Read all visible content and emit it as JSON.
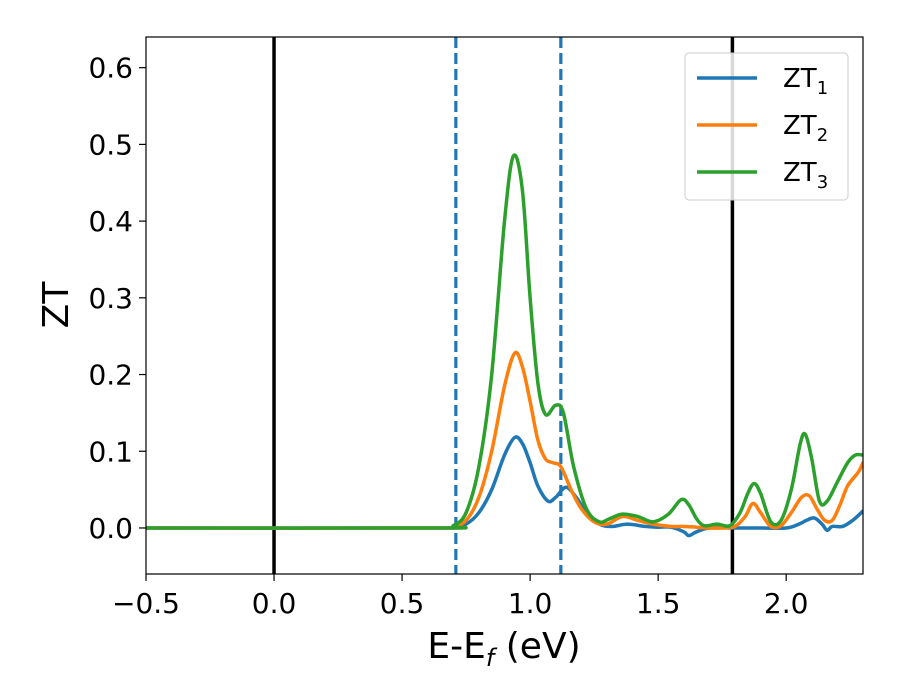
{
  "chart_data": {
    "type": "line",
    "xlabel": {
      "main": "E-E",
      "sub": "f",
      "suffix": " (eV)"
    },
    "ylabel": "ZT",
    "xlim": [
      -0.5,
      2.3
    ],
    "ylim": [
      -0.06,
      0.64
    ],
    "xticks": [
      -0.5,
      0.0,
      0.5,
      1.0,
      1.5,
      2.0
    ],
    "xtick_labels": [
      "−0.5",
      "0.0",
      "0.5",
      "1.0",
      "1.5",
      "2.0"
    ],
    "yticks": [
      0.0,
      0.1,
      0.2,
      0.3,
      0.4,
      0.5,
      0.6
    ],
    "ytick_labels": [
      "0.0",
      "0.1",
      "0.2",
      "0.3",
      "0.4",
      "0.5",
      "0.6"
    ],
    "grid": false,
    "legend_position": "top-right",
    "vlines": [
      {
        "x": 0.0,
        "style": "solid",
        "color": "#000000"
      },
      {
        "x": 1.79,
        "style": "solid",
        "color": "#000000"
      },
      {
        "x": 0.71,
        "style": "dashed",
        "color": "#1f77b4"
      },
      {
        "x": 1.12,
        "style": "dashed",
        "color": "#1f77b4"
      }
    ],
    "series": [
      {
        "name": "ZT",
        "sub": "1",
        "color": "#1f77b4",
        "points": [
          [
            -0.5,
            0
          ],
          [
            0.65,
            0
          ],
          [
            0.7,
            0.001
          ],
          [
            0.75,
            0.005
          ],
          [
            0.8,
            0.02
          ],
          [
            0.85,
            0.05
          ],
          [
            0.9,
            0.095
          ],
          [
            0.94,
            0.118
          ],
          [
            0.97,
            0.11
          ],
          [
            1.0,
            0.085
          ],
          [
            1.03,
            0.055
          ],
          [
            1.07,
            0.035
          ],
          [
            1.1,
            0.04
          ],
          [
            1.14,
            0.053
          ],
          [
            1.18,
            0.04
          ],
          [
            1.22,
            0.02
          ],
          [
            1.27,
            0.005
          ],
          [
            1.32,
            0.002
          ],
          [
            1.38,
            0.005
          ],
          [
            1.45,
            0.002
          ],
          [
            1.5,
            0.001
          ],
          [
            1.55,
            0.001
          ],
          [
            1.6,
            -0.005
          ],
          [
            1.62,
            -0.01
          ],
          [
            1.65,
            -0.005
          ],
          [
            1.7,
            0
          ],
          [
            1.8,
            0
          ],
          [
            1.9,
            0
          ],
          [
            2.0,
            0
          ],
          [
            2.05,
            0.005
          ],
          [
            2.08,
            0.01
          ],
          [
            2.11,
            0.013
          ],
          [
            2.14,
            0.005
          ],
          [
            2.16,
            -0.003
          ],
          [
            2.18,
            0.002
          ],
          [
            2.22,
            0.002
          ],
          [
            2.26,
            0.01
          ],
          [
            2.3,
            0.022
          ]
        ]
      },
      {
        "name": "ZT",
        "sub": "2",
        "color": "#ff7f0e",
        "points": [
          [
            -0.5,
            0
          ],
          [
            0.65,
            0
          ],
          [
            0.7,
            0.002
          ],
          [
            0.75,
            0.01
          ],
          [
            0.8,
            0.04
          ],
          [
            0.85,
            0.1
          ],
          [
            0.9,
            0.185
          ],
          [
            0.94,
            0.228
          ],
          [
            0.97,
            0.21
          ],
          [
            1.0,
            0.165
          ],
          [
            1.03,
            0.115
          ],
          [
            1.06,
            0.09
          ],
          [
            1.09,
            0.085
          ],
          [
            1.12,
            0.08
          ],
          [
            1.16,
            0.05
          ],
          [
            1.2,
            0.025
          ],
          [
            1.25,
            0.008
          ],
          [
            1.3,
            0.005
          ],
          [
            1.36,
            0.015
          ],
          [
            1.42,
            0.01
          ],
          [
            1.48,
            0.005
          ],
          [
            1.55,
            0.002
          ],
          [
            1.6,
            0.002
          ],
          [
            1.65,
            0.001
          ],
          [
            1.7,
            0
          ],
          [
            1.75,
            0
          ],
          [
            1.8,
            0.002
          ],
          [
            1.84,
            0.015
          ],
          [
            1.87,
            0.032
          ],
          [
            1.9,
            0.02
          ],
          [
            1.94,
            0.002
          ],
          [
            1.98,
            0.003
          ],
          [
            2.02,
            0.02
          ],
          [
            2.06,
            0.04
          ],
          [
            2.09,
            0.042
          ],
          [
            2.12,
            0.025
          ],
          [
            2.15,
            0.01
          ],
          [
            2.18,
            0.01
          ],
          [
            2.21,
            0.03
          ],
          [
            2.24,
            0.055
          ],
          [
            2.28,
            0.072
          ],
          [
            2.3,
            0.085
          ]
        ]
      },
      {
        "name": "ZT",
        "sub": "3",
        "color": "#2ca02c",
        "points": [
          [
            -0.5,
            0
          ],
          [
            0.65,
            0
          ],
          [
            0.7,
            0.003
          ],
          [
            0.75,
            0.02
          ],
          [
            0.8,
            0.08
          ],
          [
            0.85,
            0.2
          ],
          [
            0.9,
            0.4
          ],
          [
            0.935,
            0.485
          ],
          [
            0.97,
            0.44
          ],
          [
            1.0,
            0.3
          ],
          [
            1.03,
            0.19
          ],
          [
            1.06,
            0.148
          ],
          [
            1.1,
            0.16
          ],
          [
            1.13,
            0.15
          ],
          [
            1.17,
            0.08
          ],
          [
            1.22,
            0.025
          ],
          [
            1.27,
            0.008
          ],
          [
            1.31,
            0.012
          ],
          [
            1.36,
            0.018
          ],
          [
            1.42,
            0.015
          ],
          [
            1.48,
            0.008
          ],
          [
            1.54,
            0.018
          ],
          [
            1.59,
            0.037
          ],
          [
            1.62,
            0.03
          ],
          [
            1.65,
            0.012
          ],
          [
            1.68,
            0.003
          ],
          [
            1.73,
            0.005
          ],
          [
            1.78,
            0.003
          ],
          [
            1.82,
            0.02
          ],
          [
            1.85,
            0.045
          ],
          [
            1.875,
            0.058
          ],
          [
            1.9,
            0.045
          ],
          [
            1.94,
            0.008
          ],
          [
            1.98,
            0.01
          ],
          [
            2.02,
            0.05
          ],
          [
            2.055,
            0.11
          ],
          [
            2.075,
            0.122
          ],
          [
            2.1,
            0.09
          ],
          [
            2.13,
            0.035
          ],
          [
            2.16,
            0.035
          ],
          [
            2.2,
            0.06
          ],
          [
            2.24,
            0.085
          ],
          [
            2.27,
            0.095
          ],
          [
            2.3,
            0.095
          ]
        ]
      }
    ]
  }
}
